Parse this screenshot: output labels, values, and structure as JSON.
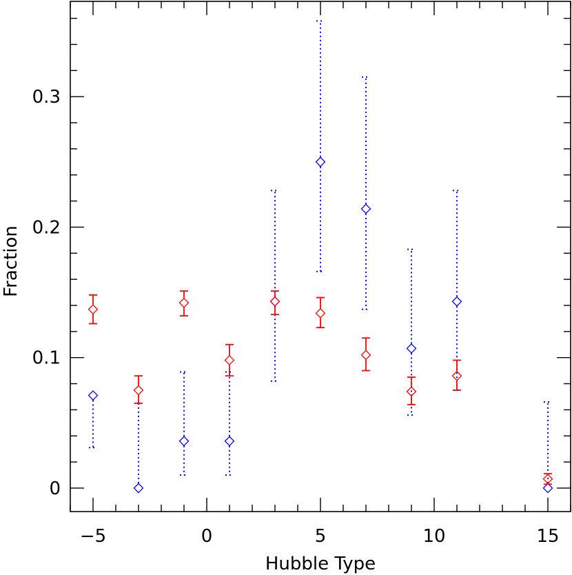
{
  "chart_data": {
    "type": "scatter",
    "title": "",
    "xlabel": "Hubble Type",
    "ylabel": "Fraction",
    "xlim": [
      -6,
      16
    ],
    "ylim": [
      -0.018,
      0.373
    ],
    "grid": false,
    "legend": "none",
    "x_ticks": [
      -5,
      0,
      5,
      10,
      15
    ],
    "x_tick_labels": [
      "−5",
      "0",
      "5",
      "10",
      "15"
    ],
    "y_ticks": [
      0,
      0.1,
      0.2,
      0.3
    ],
    "y_tick_labels": [
      "0",
      "0.1",
      "0.2",
      "0.3"
    ],
    "marker": "diamond",
    "series": [
      {
        "color": "#ff0000",
        "errorbar_style": "solid",
        "points": [
          {
            "x": -5,
            "y": 0.137,
            "lo": 0.126,
            "hi": 0.148
          },
          {
            "x": -3,
            "y": 0.075,
            "lo": 0.065,
            "hi": 0.086
          },
          {
            "x": -1,
            "y": 0.142,
            "lo": 0.132,
            "hi": 0.151
          },
          {
            "x": 1,
            "y": 0.098,
            "lo": 0.086,
            "hi": 0.11
          },
          {
            "x": 3,
            "y": 0.143,
            "lo": 0.133,
            "hi": 0.151
          },
          {
            "x": 5,
            "y": 0.134,
            "lo": 0.123,
            "hi": 0.146
          },
          {
            "x": 7,
            "y": 0.102,
            "lo": 0.09,
            "hi": 0.115
          },
          {
            "x": 9,
            "y": 0.074,
            "lo": 0.064,
            "hi": 0.085
          },
          {
            "x": 11,
            "y": 0.086,
            "lo": 0.075,
            "hi": 0.098
          },
          {
            "x": 15,
            "y": 0.007,
            "lo": 0.003,
            "hi": 0.011
          }
        ]
      },
      {
        "color": "#0000ff",
        "errorbar_style": "dotted",
        "points": [
          {
            "x": -5,
            "y": 0.071,
            "lo": 0.031,
            "hi": null
          },
          {
            "x": -3,
            "y": 0.0,
            "lo": null,
            "hi": 0.065
          },
          {
            "x": -1,
            "y": 0.036,
            "lo": 0.01,
            "hi": 0.089
          },
          {
            "x": 1,
            "y": 0.036,
            "lo": 0.01,
            "hi": 0.089
          },
          {
            "x": 3,
            "y": 0.143,
            "lo": 0.082,
            "hi": 0.228
          },
          {
            "x": 5,
            "y": 0.25,
            "lo": 0.166,
            "hi": 0.358
          },
          {
            "x": 7,
            "y": 0.214,
            "lo": 0.137,
            "hi": 0.315
          },
          {
            "x": 9,
            "y": 0.107,
            "lo": 0.056,
            "hi": 0.183
          },
          {
            "x": 11,
            "y": 0.143,
            "lo": 0.075,
            "hi": 0.228
          },
          {
            "x": 15,
            "y": 0.0,
            "lo": null,
            "hi": 0.066
          }
        ]
      }
    ]
  }
}
